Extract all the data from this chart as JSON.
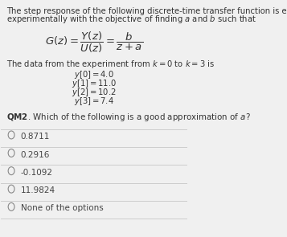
{
  "bg_color": "#f0f0f0",
  "text_color": "#333333",
  "question_label": "QM2",
  "question_text": ". Which of the following is a good approximation of ",
  "question_var": "a",
  "options": [
    "0.8711",
    "0.2916",
    "-0.1092",
    "11.9824",
    "None of the options"
  ],
  "divider_color": "#cccccc",
  "option_text_color": "#444444",
  "circle_color": "#888888",
  "fs_main": 7.2,
  "fs_opt": 7.5,
  "fs_formula": 9.5
}
